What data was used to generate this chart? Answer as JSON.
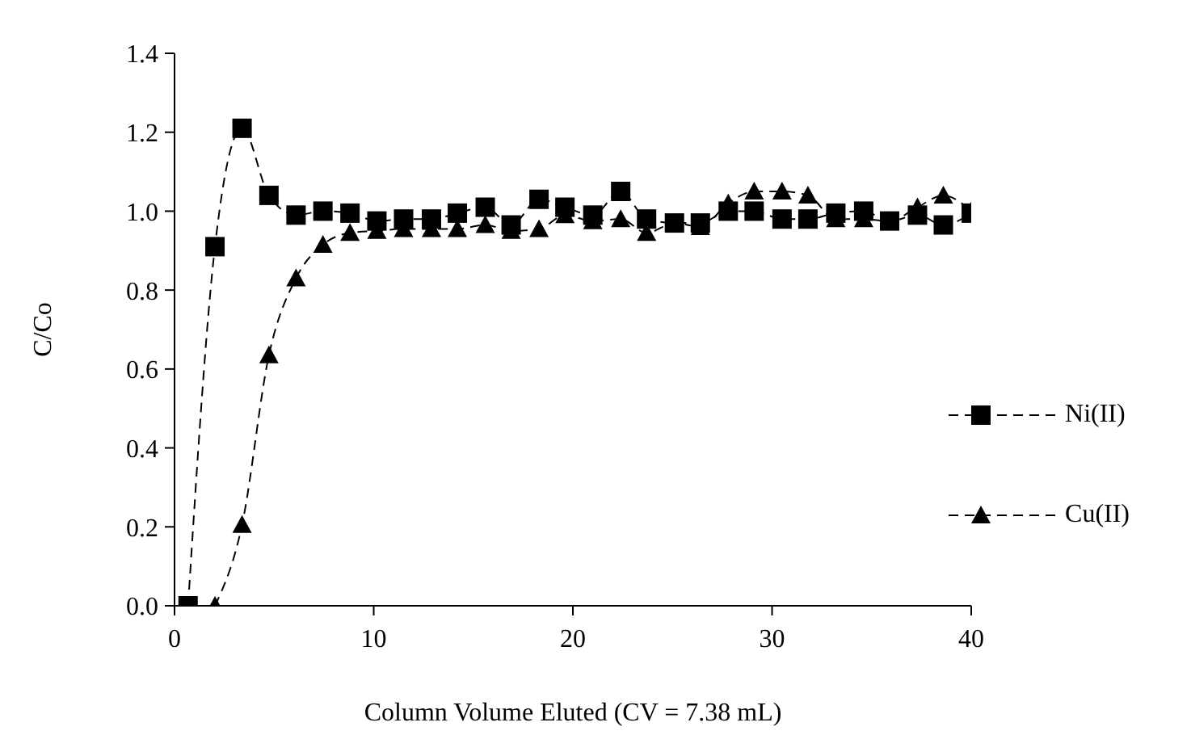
{
  "chart_data": {
    "type": "line",
    "xlabel": "Column Volume Eluted (CV = 7.38 mL)",
    "ylabel": "C/Co",
    "xlim": [
      0,
      40
    ],
    "xticks": [
      0,
      10,
      20,
      30,
      40
    ],
    "ylim": [
      0,
      1.4
    ],
    "yticks": [
      {
        "value": 0,
        "label": "0.0"
      },
      {
        "value": 0.2,
        "label": "0.2"
      },
      {
        "value": 0.4,
        "label": "0.4"
      },
      {
        "value": 0.6,
        "label": "0.6"
      },
      {
        "value": 0.8,
        "label": "0.8"
      },
      {
        "value": 1,
        "label": "1.0"
      },
      {
        "value": 1.2,
        "label": "1.2"
      },
      {
        "value": 1.4,
        "label": "1.4"
      }
    ],
    "grid": false,
    "legend": "right",
    "line_style": "dashed",
    "series": [
      {
        "name": "Ni(II)",
        "color": "#000000",
        "marker": "square",
        "x": [
          0.68,
          2.03,
          3.39,
          4.74,
          6.1,
          7.45,
          8.81,
          10.16,
          11.5,
          12.9,
          14.2,
          15.6,
          16.9,
          18.3,
          19.6,
          21.0,
          22.4,
          23.7,
          25.1,
          26.4,
          27.8,
          29.1,
          30.5,
          31.8,
          33.2,
          34.6,
          35.9,
          37.3,
          38.6,
          40.0
        ],
        "values": [
          0,
          0.91,
          1.21,
          1.04,
          0.99,
          1.0,
          0.995,
          0.975,
          0.98,
          0.98,
          0.995,
          1.01,
          0.965,
          1.03,
          1.01,
          0.99,
          1.05,
          0.98,
          0.97,
          0.97,
          1.0,
          1.0,
          0.98,
          0.98,
          0.995,
          1.0,
          0.975,
          0.99,
          0.965,
          0.995
        ]
      },
      {
        "name": "Cu(II)",
        "color": "#000000",
        "marker": "triangle",
        "x": [
          2.03,
          3.39,
          4.74,
          6.1,
          7.45,
          8.81,
          10.16,
          11.5,
          12.9,
          14.2,
          15.6,
          16.9,
          18.3,
          19.6,
          21.0,
          22.4,
          23.7,
          25.1,
          26.4,
          27.8,
          29.1,
          30.5,
          31.8,
          33.2,
          34.6,
          35.9,
          37.3,
          38.6,
          40.0
        ],
        "values": [
          0,
          0.205,
          0.635,
          0.83,
          0.915,
          0.945,
          0.95,
          0.955,
          0.955,
          0.955,
          0.965,
          0.95,
          0.955,
          0.99,
          0.975,
          0.98,
          0.945,
          0.97,
          0.96,
          1.02,
          1.05,
          1.05,
          1.04,
          0.98,
          0.98,
          0.975,
          1.01,
          1.04,
          1.0
        ]
      }
    ]
  }
}
